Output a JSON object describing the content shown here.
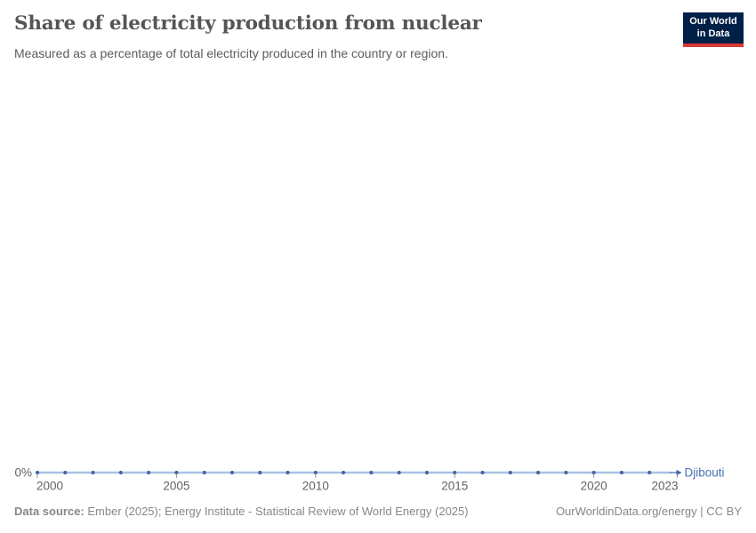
{
  "header": {
    "title": "Share of electricity production from nuclear",
    "subtitle": "Measured as a percentage of total electricity produced in the country or region.",
    "logo": {
      "line1": "Our World",
      "line2": "in Data"
    }
  },
  "chart_data": {
    "type": "line",
    "title": "Share of electricity production from nuclear",
    "subtitle": "Measured as a percentage of total electricity produced in the country or region.",
    "x": [
      2000,
      2001,
      2002,
      2003,
      2004,
      2005,
      2006,
      2007,
      2008,
      2009,
      2010,
      2011,
      2012,
      2013,
      2014,
      2015,
      2016,
      2017,
      2018,
      2019,
      2020,
      2021,
      2022,
      2023
    ],
    "series": [
      {
        "name": "Djibouti",
        "values": [
          0,
          0,
          0,
          0,
          0,
          0,
          0,
          0,
          0,
          0,
          0,
          0,
          0,
          0,
          0,
          0,
          0,
          0,
          0,
          0,
          0,
          0,
          0,
          0
        ],
        "point_color": "#4166a5",
        "line_color": "#aac2e2",
        "label_color": "#4470b2"
      }
    ],
    "x_ticks": [
      2000,
      2005,
      2010,
      2015,
      2020,
      2023
    ],
    "y_ticks": [
      {
        "value": 0,
        "label": "0%"
      }
    ],
    "xlim": [
      2000,
      2023
    ],
    "ylim": [
      0,
      0
    ],
    "grid": false,
    "legend_position": "end-of-line-label",
    "colors": {
      "tick": "#9a9a9a",
      "tick_label": "#636363",
      "y_label": "#636363"
    }
  },
  "footer": {
    "datasource_label": "Data source:",
    "datasource_text": "Ember (2025); Energy Institute - Statistical Review of World Energy (2025)",
    "link_text": "OurWorldinData.org/energy | CC BY"
  }
}
